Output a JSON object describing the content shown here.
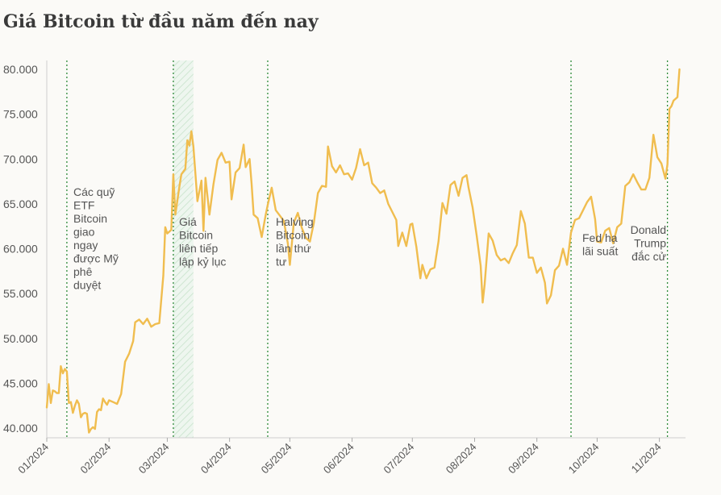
{
  "title": "Giá Bitcoin từ đầu năm đến nay",
  "colors": {
    "line": "#f0bd4f",
    "event_line": "#2e8b3a",
    "band": "#cfe6d2",
    "axis": "#cfcfcf",
    "background": "#fbfaf7"
  },
  "chart_data": {
    "type": "line",
    "title": "Giá Bitcoin từ đầu năm đến nay",
    "xlabel": "",
    "ylabel": "",
    "ylim": [
      39500,
      80500
    ],
    "y_ticks": [
      "40.000",
      "45.000",
      "50.000",
      "55.000",
      "60.000",
      "65.000",
      "70.000",
      "75.000",
      "80.000"
    ],
    "y_tick_values": [
      40000,
      45000,
      50000,
      55000,
      60000,
      65000,
      70000,
      75000,
      80000
    ],
    "x_ticks": [
      "01/2024",
      "02/2024",
      "03/2024",
      "04/2024",
      "05/2024",
      "06/2024",
      "07/2024",
      "08/2024",
      "09/2024",
      "10/2024",
      "11/2024"
    ],
    "x_tick_dates": [
      "2024-01-01",
      "2024-02-01",
      "2024-03-01",
      "2024-04-01",
      "2024-05-01",
      "2024-06-01",
      "2024-07-01",
      "2024-08-01",
      "2024-09-01",
      "2024-10-01",
      "2024-11-01"
    ],
    "series": [
      {
        "points": [
          [
            "2024-01-01",
            42300
          ],
          [
            "2024-01-02",
            44900
          ],
          [
            "2024-01-03",
            42800
          ],
          [
            "2024-01-04",
            44200
          ],
          [
            "2024-01-05",
            44100
          ],
          [
            "2024-01-06",
            43900
          ],
          [
            "2024-01-07",
            43900
          ],
          [
            "2024-01-08",
            46900
          ],
          [
            "2024-01-09",
            46100
          ],
          [
            "2024-01-10",
            46600
          ],
          [
            "2024-01-11",
            46300
          ],
          [
            "2024-01-12",
            42800
          ],
          [
            "2024-01-13",
            42900
          ],
          [
            "2024-01-14",
            41700
          ],
          [
            "2024-01-15",
            42500
          ],
          [
            "2024-01-16",
            43100
          ],
          [
            "2024-01-17",
            42700
          ],
          [
            "2024-01-18",
            41200
          ],
          [
            "2024-01-19",
            41600
          ],
          [
            "2024-01-20",
            41700
          ],
          [
            "2024-01-21",
            41600
          ],
          [
            "2024-01-22",
            39500
          ],
          [
            "2024-01-23",
            39900
          ],
          [
            "2024-01-24",
            40100
          ],
          [
            "2024-01-25",
            39900
          ],
          [
            "2024-01-26",
            41800
          ],
          [
            "2024-01-27",
            42100
          ],
          [
            "2024-01-28",
            42000
          ],
          [
            "2024-01-29",
            43300
          ],
          [
            "2024-01-30",
            42900
          ],
          [
            "2024-01-31",
            42600
          ],
          [
            "2024-02-01",
            43100
          ],
          [
            "2024-02-03",
            42900
          ],
          [
            "2024-02-05",
            42700
          ],
          [
            "2024-02-07",
            43800
          ],
          [
            "2024-02-09",
            47400
          ],
          [
            "2024-02-11",
            48300
          ],
          [
            "2024-02-13",
            49700
          ],
          [
            "2024-02-14",
            51800
          ],
          [
            "2024-02-16",
            52100
          ],
          [
            "2024-02-18",
            51600
          ],
          [
            "2024-02-20",
            52200
          ],
          [
            "2024-02-22",
            51300
          ],
          [
            "2024-02-24",
            51600
          ],
          [
            "2024-02-26",
            51700
          ],
          [
            "2024-02-28",
            57000
          ],
          [
            "2024-02-29",
            62400
          ],
          [
            "2024-03-01",
            61700
          ],
          [
            "2024-03-03",
            62100
          ],
          [
            "2024-03-04",
            68300
          ],
          [
            "2024-03-05",
            63800
          ],
          [
            "2024-03-07",
            66900
          ],
          [
            "2024-03-08",
            68300
          ],
          [
            "2024-03-10",
            68900
          ],
          [
            "2024-03-11",
            72100
          ],
          [
            "2024-03-12",
            71500
          ],
          [
            "2024-03-13",
            73100
          ],
          [
            "2024-03-14",
            71400
          ],
          [
            "2024-03-16",
            65300
          ],
          [
            "2024-03-18",
            67600
          ],
          [
            "2024-03-19",
            62000
          ],
          [
            "2024-03-20",
            67900
          ],
          [
            "2024-03-22",
            63800
          ],
          [
            "2024-03-24",
            67200
          ],
          [
            "2024-03-26",
            69900
          ],
          [
            "2024-03-28",
            70700
          ],
          [
            "2024-03-30",
            69600
          ],
          [
            "2024-04-01",
            69700
          ],
          [
            "2024-04-02",
            65500
          ],
          [
            "2024-04-04",
            68500
          ],
          [
            "2024-04-06",
            69000
          ],
          [
            "2024-04-08",
            71600
          ],
          [
            "2024-04-09",
            69100
          ],
          [
            "2024-04-11",
            70000
          ],
          [
            "2024-04-12",
            67200
          ],
          [
            "2024-04-13",
            63800
          ],
          [
            "2024-04-15",
            63400
          ],
          [
            "2024-04-17",
            61300
          ],
          [
            "2024-04-19",
            63800
          ],
          [
            "2024-04-20",
            64900
          ],
          [
            "2024-04-22",
            66800
          ],
          [
            "2024-04-24",
            64300
          ],
          [
            "2024-04-26",
            63700
          ],
          [
            "2024-04-28",
            63100
          ],
          [
            "2024-04-30",
            60600
          ],
          [
            "2024-05-01",
            58200
          ],
          [
            "2024-05-03",
            62900
          ],
          [
            "2024-05-05",
            64000
          ],
          [
            "2024-05-07",
            62300
          ],
          [
            "2024-05-09",
            61200
          ],
          [
            "2024-05-11",
            60800
          ],
          [
            "2024-05-13",
            62900
          ],
          [
            "2024-05-15",
            66200
          ],
          [
            "2024-05-17",
            67000
          ],
          [
            "2024-05-19",
            66900
          ],
          [
            "2024-05-20",
            71400
          ],
          [
            "2024-05-22",
            69200
          ],
          [
            "2024-05-24",
            68500
          ],
          [
            "2024-05-26",
            69300
          ],
          [
            "2024-05-28",
            68300
          ],
          [
            "2024-05-30",
            68400
          ],
          [
            "2024-06-01",
            67700
          ],
          [
            "2024-06-03",
            69000
          ],
          [
            "2024-06-05",
            71100
          ],
          [
            "2024-06-07",
            69300
          ],
          [
            "2024-06-09",
            69600
          ],
          [
            "2024-06-11",
            67300
          ],
          [
            "2024-06-13",
            66800
          ],
          [
            "2024-06-15",
            66200
          ],
          [
            "2024-06-17",
            66500
          ],
          [
            "2024-06-19",
            65000
          ],
          [
            "2024-06-21",
            64100
          ],
          [
            "2024-06-23",
            63200
          ],
          [
            "2024-06-24",
            60300
          ],
          [
            "2024-06-26",
            61800
          ],
          [
            "2024-06-28",
            60300
          ],
          [
            "2024-06-30",
            62700
          ],
          [
            "2024-07-01",
            62800
          ],
          [
            "2024-07-03",
            60200
          ],
          [
            "2024-07-05",
            56700
          ],
          [
            "2024-07-06",
            58200
          ],
          [
            "2024-07-08",
            56700
          ],
          [
            "2024-07-10",
            57700
          ],
          [
            "2024-07-12",
            57900
          ],
          [
            "2024-07-14",
            60800
          ],
          [
            "2024-07-16",
            65100
          ],
          [
            "2024-07-18",
            63900
          ],
          [
            "2024-07-20",
            67100
          ],
          [
            "2024-07-22",
            67500
          ],
          [
            "2024-07-24",
            65900
          ],
          [
            "2024-07-26",
            67900
          ],
          [
            "2024-07-28",
            68200
          ],
          [
            "2024-07-29",
            66800
          ],
          [
            "2024-07-31",
            64600
          ],
          [
            "2024-08-02",
            61500
          ],
          [
            "2024-08-04",
            58100
          ],
          [
            "2024-08-05",
            54000
          ],
          [
            "2024-08-06",
            56000
          ],
          [
            "2024-08-08",
            61700
          ],
          [
            "2024-08-10",
            60900
          ],
          [
            "2024-08-12",
            59300
          ],
          [
            "2024-08-14",
            58700
          ],
          [
            "2024-08-16",
            58900
          ],
          [
            "2024-08-18",
            58400
          ],
          [
            "2024-08-20",
            59500
          ],
          [
            "2024-08-22",
            60400
          ],
          [
            "2024-08-24",
            64200
          ],
          [
            "2024-08-26",
            62800
          ],
          [
            "2024-08-28",
            59000
          ],
          [
            "2024-08-30",
            59000
          ],
          [
            "2024-09-01",
            57300
          ],
          [
            "2024-09-03",
            57900
          ],
          [
            "2024-09-05",
            56200
          ],
          [
            "2024-09-06",
            53900
          ],
          [
            "2024-09-08",
            54800
          ],
          [
            "2024-09-10",
            57600
          ],
          [
            "2024-09-12",
            58100
          ],
          [
            "2024-09-14",
            60000
          ],
          [
            "2024-09-16",
            58200
          ],
          [
            "2024-09-18",
            61800
          ],
          [
            "2024-09-20",
            63200
          ],
          [
            "2024-09-22",
            63400
          ],
          [
            "2024-09-24",
            64300
          ],
          [
            "2024-09-26",
            65200
          ],
          [
            "2024-09-28",
            65800
          ],
          [
            "2024-09-30",
            63300
          ],
          [
            "2024-10-01",
            60800
          ],
          [
            "2024-10-03",
            60700
          ],
          [
            "2024-10-05",
            62000
          ],
          [
            "2024-10-07",
            62300
          ],
          [
            "2024-10-09",
            60600
          ],
          [
            "2024-10-11",
            62400
          ],
          [
            "2024-10-13",
            62800
          ],
          [
            "2024-10-15",
            67000
          ],
          [
            "2024-10-17",
            67400
          ],
          [
            "2024-10-19",
            68300
          ],
          [
            "2024-10-21",
            67400
          ],
          [
            "2024-10-23",
            66600
          ],
          [
            "2024-10-25",
            66600
          ],
          [
            "2024-10-27",
            67900
          ],
          [
            "2024-10-29",
            72700
          ],
          [
            "2024-10-31",
            70200
          ],
          [
            "2024-11-02",
            69500
          ],
          [
            "2024-11-04",
            67800
          ],
          [
            "2024-11-05",
            69400
          ],
          [
            "2024-11-06",
            75600
          ],
          [
            "2024-11-07",
            75900
          ],
          [
            "2024-11-08",
            76500
          ],
          [
            "2024-11-10",
            76900
          ],
          [
            "2024-11-11",
            80000
          ]
        ]
      }
    ],
    "highlight_band": [
      "2024-03-04",
      "2024-03-14"
    ],
    "events": [
      {
        "date": "2024-01-11",
        "label_lines": [
          "Các quỹ",
          "ETF",
          "Bitcoin",
          "giao",
          "ngay",
          "được Mỹ",
          "phê",
          "duyệt"
        ]
      },
      {
        "date": "2024-03-04",
        "label_lines": [
          "Giá",
          "Bitcoin",
          "liên tiếp",
          "lập kỷ lục"
        ]
      },
      {
        "date": "2024-04-20",
        "label_lines": [
          "Halving",
          "Bitcoin",
          "lần thứ",
          "tư"
        ]
      },
      {
        "date": "2024-09-18",
        "label_lines": [
          "Fed hạ",
          "lãi suất"
        ]
      },
      {
        "date": "2024-11-05",
        "label_lines": [
          "Donald",
          "Trump",
          "đắc cử"
        ]
      }
    ]
  }
}
